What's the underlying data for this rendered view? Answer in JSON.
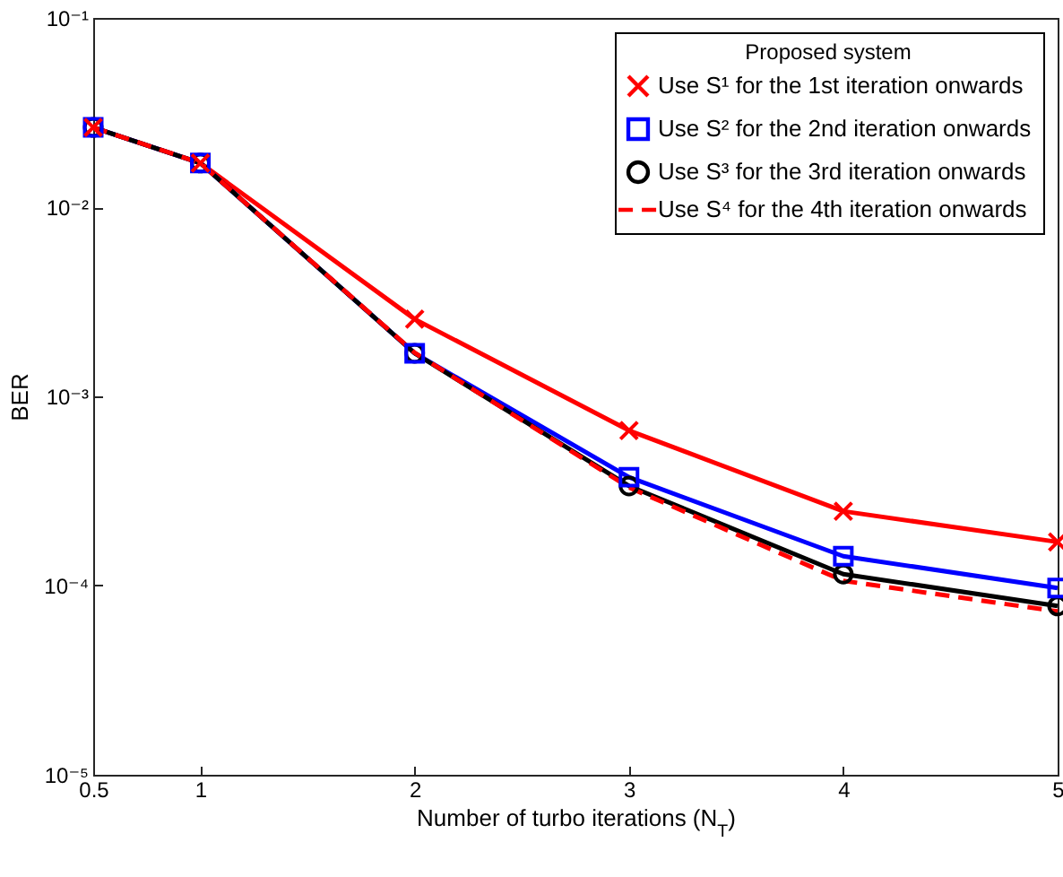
{
  "chart_data": {
    "type": "line",
    "xlabel": "Number of turbo iterations (N$_{T}$)",
    "ylabel": "BER",
    "legend_title": "Proposed system",
    "x": [
      0.5,
      1,
      2,
      3,
      4,
      5
    ],
    "series": [
      {
        "name": "Use S¹ for the 1st iteration onwards",
        "color": "#ff0000",
        "marker": "cross",
        "line_style": "solid",
        "values": [
          0.0264,
          0.0171,
          0.00256,
          0.00066,
          0.000247,
          0.00017
        ]
      },
      {
        "name": "Use S² for the 2nd iteration onwards",
        "color": "#0000ff",
        "marker": "square",
        "line_style": "solid",
        "values": [
          0.0264,
          0.0171,
          0.00169,
          0.000374,
          0.000143,
          9.7e-05
        ]
      },
      {
        "name": "Use S³ for the 3rd iteration onwards",
        "color": "#000000",
        "marker": "circle",
        "line_style": "solid",
        "values": [
          0.0264,
          0.0171,
          0.00169,
          0.000336,
          0.000115,
          7.8e-05
        ]
      },
      {
        "name": "Use S⁴ for the 4th iteration onwards",
        "color": "#ff0000",
        "marker": "none",
        "line_style": "dashed",
        "values": [
          0.0264,
          0.0171,
          0.0017,
          0.00033,
          0.000106,
          7.3e-05
        ]
      }
    ],
    "log": "y",
    "grid": false,
    "legend": "top right",
    "xlim": [
      0.5,
      5
    ],
    "xticks": [
      0.5,
      1,
      2,
      3,
      4,
      5
    ],
    "ylim": [
      1e-05,
      0.1
    ],
    "yticks": [
      {
        "value": 1e-05,
        "label": "10⁻⁵"
      },
      {
        "value": 0.0001,
        "label": "10⁻⁴"
      },
      {
        "value": 0.001,
        "label": "10⁻³"
      },
      {
        "value": 0.01,
        "label": "10⁻²"
      },
      {
        "value": 0.1,
        "label": "10⁻¹"
      }
    ]
  }
}
